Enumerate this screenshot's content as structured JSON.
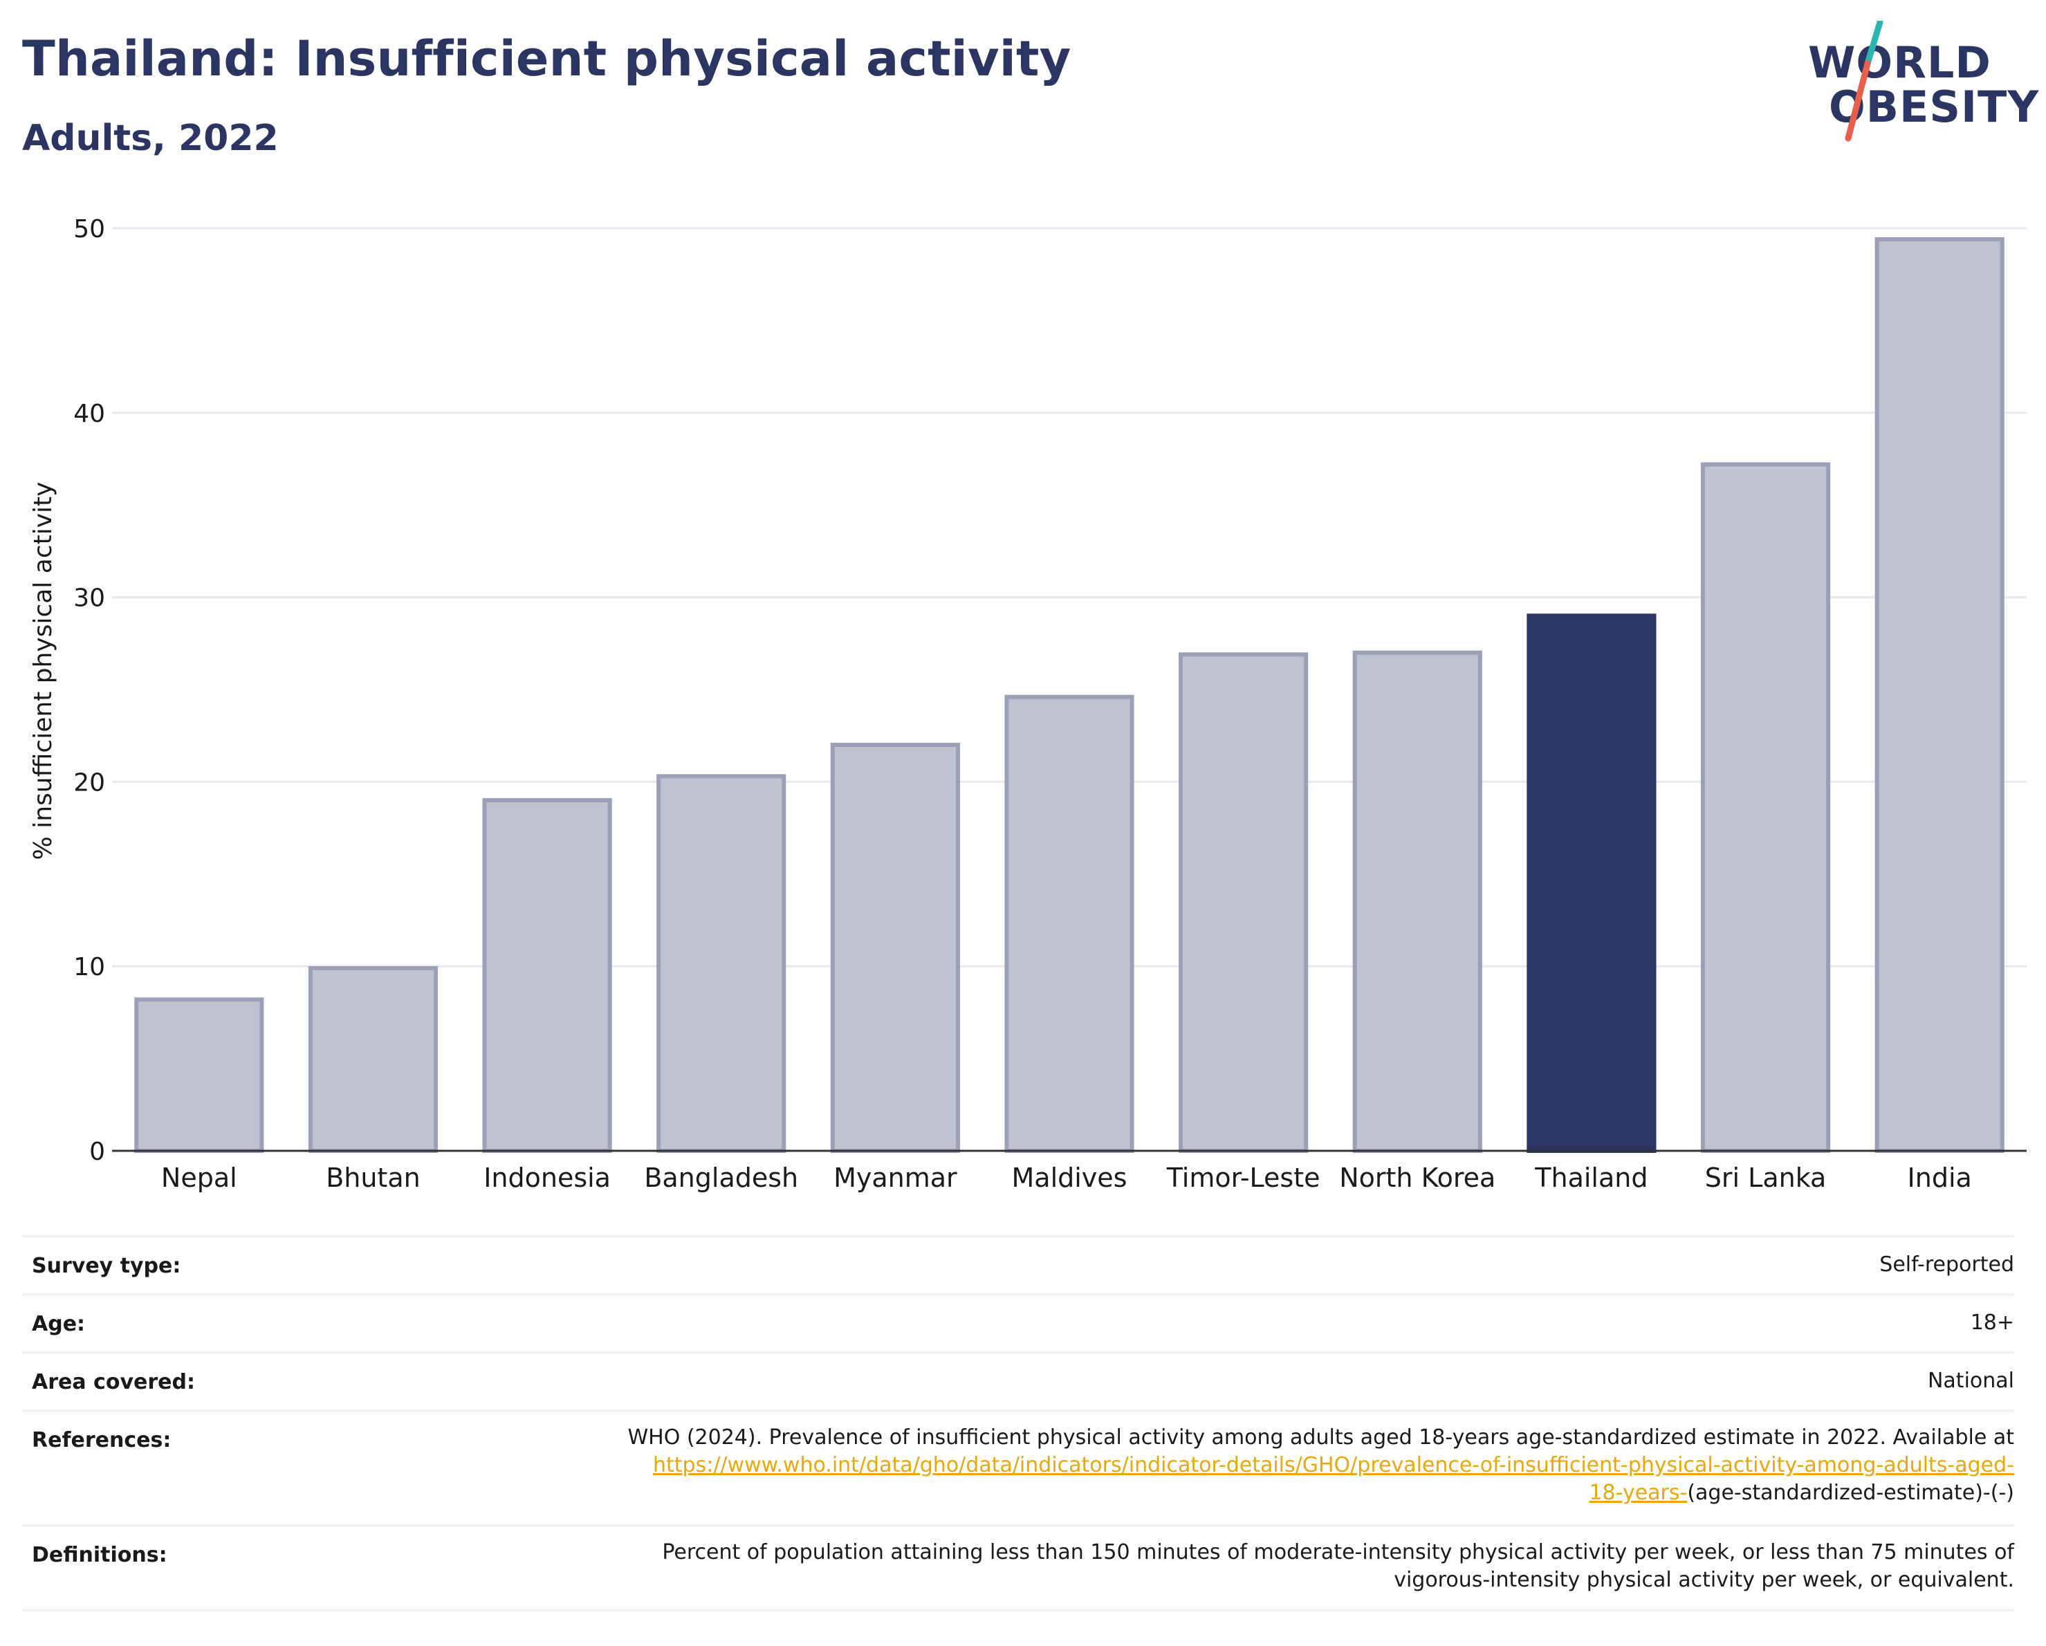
{
  "header": {
    "title": "Thailand: Insufficient physical activity",
    "subtitle": "Adults, 2022"
  },
  "logo": {
    "line1": "WORLD",
    "line2": "OBESITY",
    "text_color": "#2b3562",
    "slash_colors": [
      "#2bb5b0",
      "#e8604c"
    ]
  },
  "chart_data": {
    "type": "bar",
    "categories": [
      "Nepal",
      "Bhutan",
      "Indonesia",
      "Bangladesh",
      "Myanmar",
      "Maldives",
      "Timor-Leste",
      "North Korea",
      "Thailand",
      "Sri Lanka",
      "India"
    ],
    "values": [
      8.2,
      9.9,
      19.0,
      20.3,
      22.0,
      24.6,
      26.9,
      27.0,
      29.0,
      37.2,
      49.4
    ],
    "highlight": "Thailand",
    "highlight_color": "#2b3562",
    "bar_color": "#bfc3d0",
    "bar_edge_color": "#9aa0b8",
    "title": "Thailand: Insufficient physical activity",
    "subtitle": "Adults, 2022",
    "xlabel": "",
    "ylabel": "% insufficient physical activity",
    "ylim": [
      0,
      50
    ],
    "yticks": [
      0,
      10,
      20,
      30,
      40,
      50
    ],
    "grid": true,
    "legend": "none"
  },
  "table": {
    "rows": [
      {
        "label": "Survey type:",
        "value": "Self-reported"
      },
      {
        "label": "Age:",
        "value": "18+"
      },
      {
        "label": "Area covered:",
        "value": "National"
      },
      {
        "label": "References:",
        "value_line1": "WHO (2024). Prevalence of insufficient physical activity among adults aged 18-years age-standardized estimate in 2022. Available at",
        "link_line1": "https://www.who.int/data/gho/data/indicators/indicator-details/GHO/prevalence-of-insufficient-physical-activity-among-adults-aged-",
        "link_line2": "18-years-",
        "value_line3_tail": "(age-standardized-estimate)-(-)"
      },
      {
        "label": "Definitions:",
        "value_line1": "Percent of population attaining less than 150 minutes of moderate-intensity physical activity per week, or less than 75 minutes of",
        "value_line2": "vigorous-intensity physical activity per week, or equivalent."
      }
    ]
  }
}
